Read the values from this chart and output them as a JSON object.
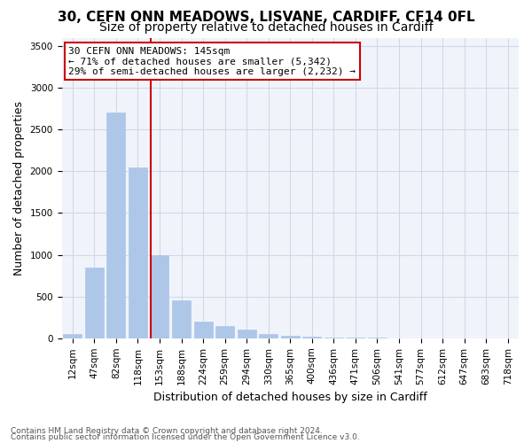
{
  "title1": "30, CEFN ONN MEADOWS, LISVANE, CARDIFF, CF14 0FL",
  "title2": "Size of property relative to detached houses in Cardiff",
  "xlabel": "Distribution of detached houses by size in Cardiff",
  "ylabel": "Number of detached properties",
  "categories": [
    "12sqm",
    "47sqm",
    "82sqm",
    "118sqm",
    "153sqm",
    "188sqm",
    "224sqm",
    "259sqm",
    "294sqm",
    "330sqm",
    "365sqm",
    "400sqm",
    "436sqm",
    "471sqm",
    "506sqm",
    "541sqm",
    "577sqm",
    "612sqm",
    "647sqm",
    "683sqm",
    "718sqm"
  ],
  "values": [
    50,
    850,
    2700,
    2050,
    1000,
    450,
    200,
    150,
    100,
    55,
    30,
    18,
    12,
    6,
    4,
    3,
    2,
    1,
    1,
    1,
    0
  ],
  "bar_color": "#aec6e8",
  "bar_edge_color": "#aec6e8",
  "vline_x": 3.575,
  "vline_color": "#cc0000",
  "annotation_title": "30 CEFN ONN MEADOWS: 145sqm",
  "annotation_line1": "← 71% of detached houses are smaller (5,342)",
  "annotation_line2": "29% of semi-detached houses are larger (2,232) →",
  "annotation_box_color": "#cc0000",
  "ylim": [
    0,
    3600
  ],
  "yticks": [
    0,
    500,
    1000,
    1500,
    2000,
    2500,
    3000,
    3500
  ],
  "grid_color": "#d0d8e8",
  "bg_color": "#f0f4fa",
  "footer1": "Contains HM Land Registry data © Crown copyright and database right 2024.",
  "footer2": "Contains public sector information licensed under the Open Government Licence v3.0.",
  "title1_fontsize": 11,
  "title2_fontsize": 10,
  "xlabel_fontsize": 9,
  "ylabel_fontsize": 9,
  "tick_fontsize": 7.5,
  "annotation_fontsize": 8
}
